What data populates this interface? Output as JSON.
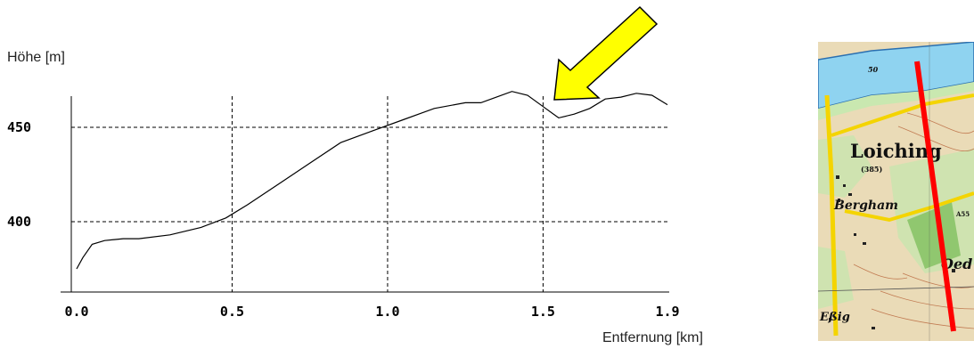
{
  "chart_data": {
    "type": "line",
    "ylabel": "Höhe [m]",
    "xlabel": "Entfernung [km]",
    "xlim": [
      0.0,
      1.9
    ],
    "ylim": [
      373,
      480
    ],
    "xticks": [
      "0.0",
      "0.5",
      "1.0",
      "1.5",
      "1.9"
    ],
    "yticks": [
      "400",
      "450"
    ],
    "grid": true,
    "series": [
      {
        "x": [
          0.0,
          0.02,
          0.05,
          0.09,
          0.15,
          0.2,
          0.3,
          0.4,
          0.48,
          0.55,
          0.65,
          0.75,
          0.85,
          0.95,
          1.05,
          1.15,
          1.25,
          1.3,
          1.35,
          1.4,
          1.45,
          1.5,
          1.55,
          1.6,
          1.65,
          1.7,
          1.75,
          1.8,
          1.85,
          1.9
        ],
        "y": [
          375,
          381,
          388,
          390,
          391,
          391,
          393,
          397,
          402,
          409,
          420,
          431,
          442,
          448,
          454,
          460,
          463,
          463,
          466,
          469,
          467,
          461,
          455,
          457,
          460,
          465,
          466,
          468,
          467,
          462
        ]
      }
    ],
    "annotations": [
      {
        "type": "arrow",
        "color": "#ffff00",
        "target_x": 1.52
      }
    ]
  },
  "map": {
    "town_label": "Loiching",
    "elev_label": "(385)",
    "village1": "Bergham",
    "village2": "Oed",
    "village3": "Eßig",
    "road_label": "A55",
    "water_label": "50",
    "route_color": "#ff0000"
  }
}
